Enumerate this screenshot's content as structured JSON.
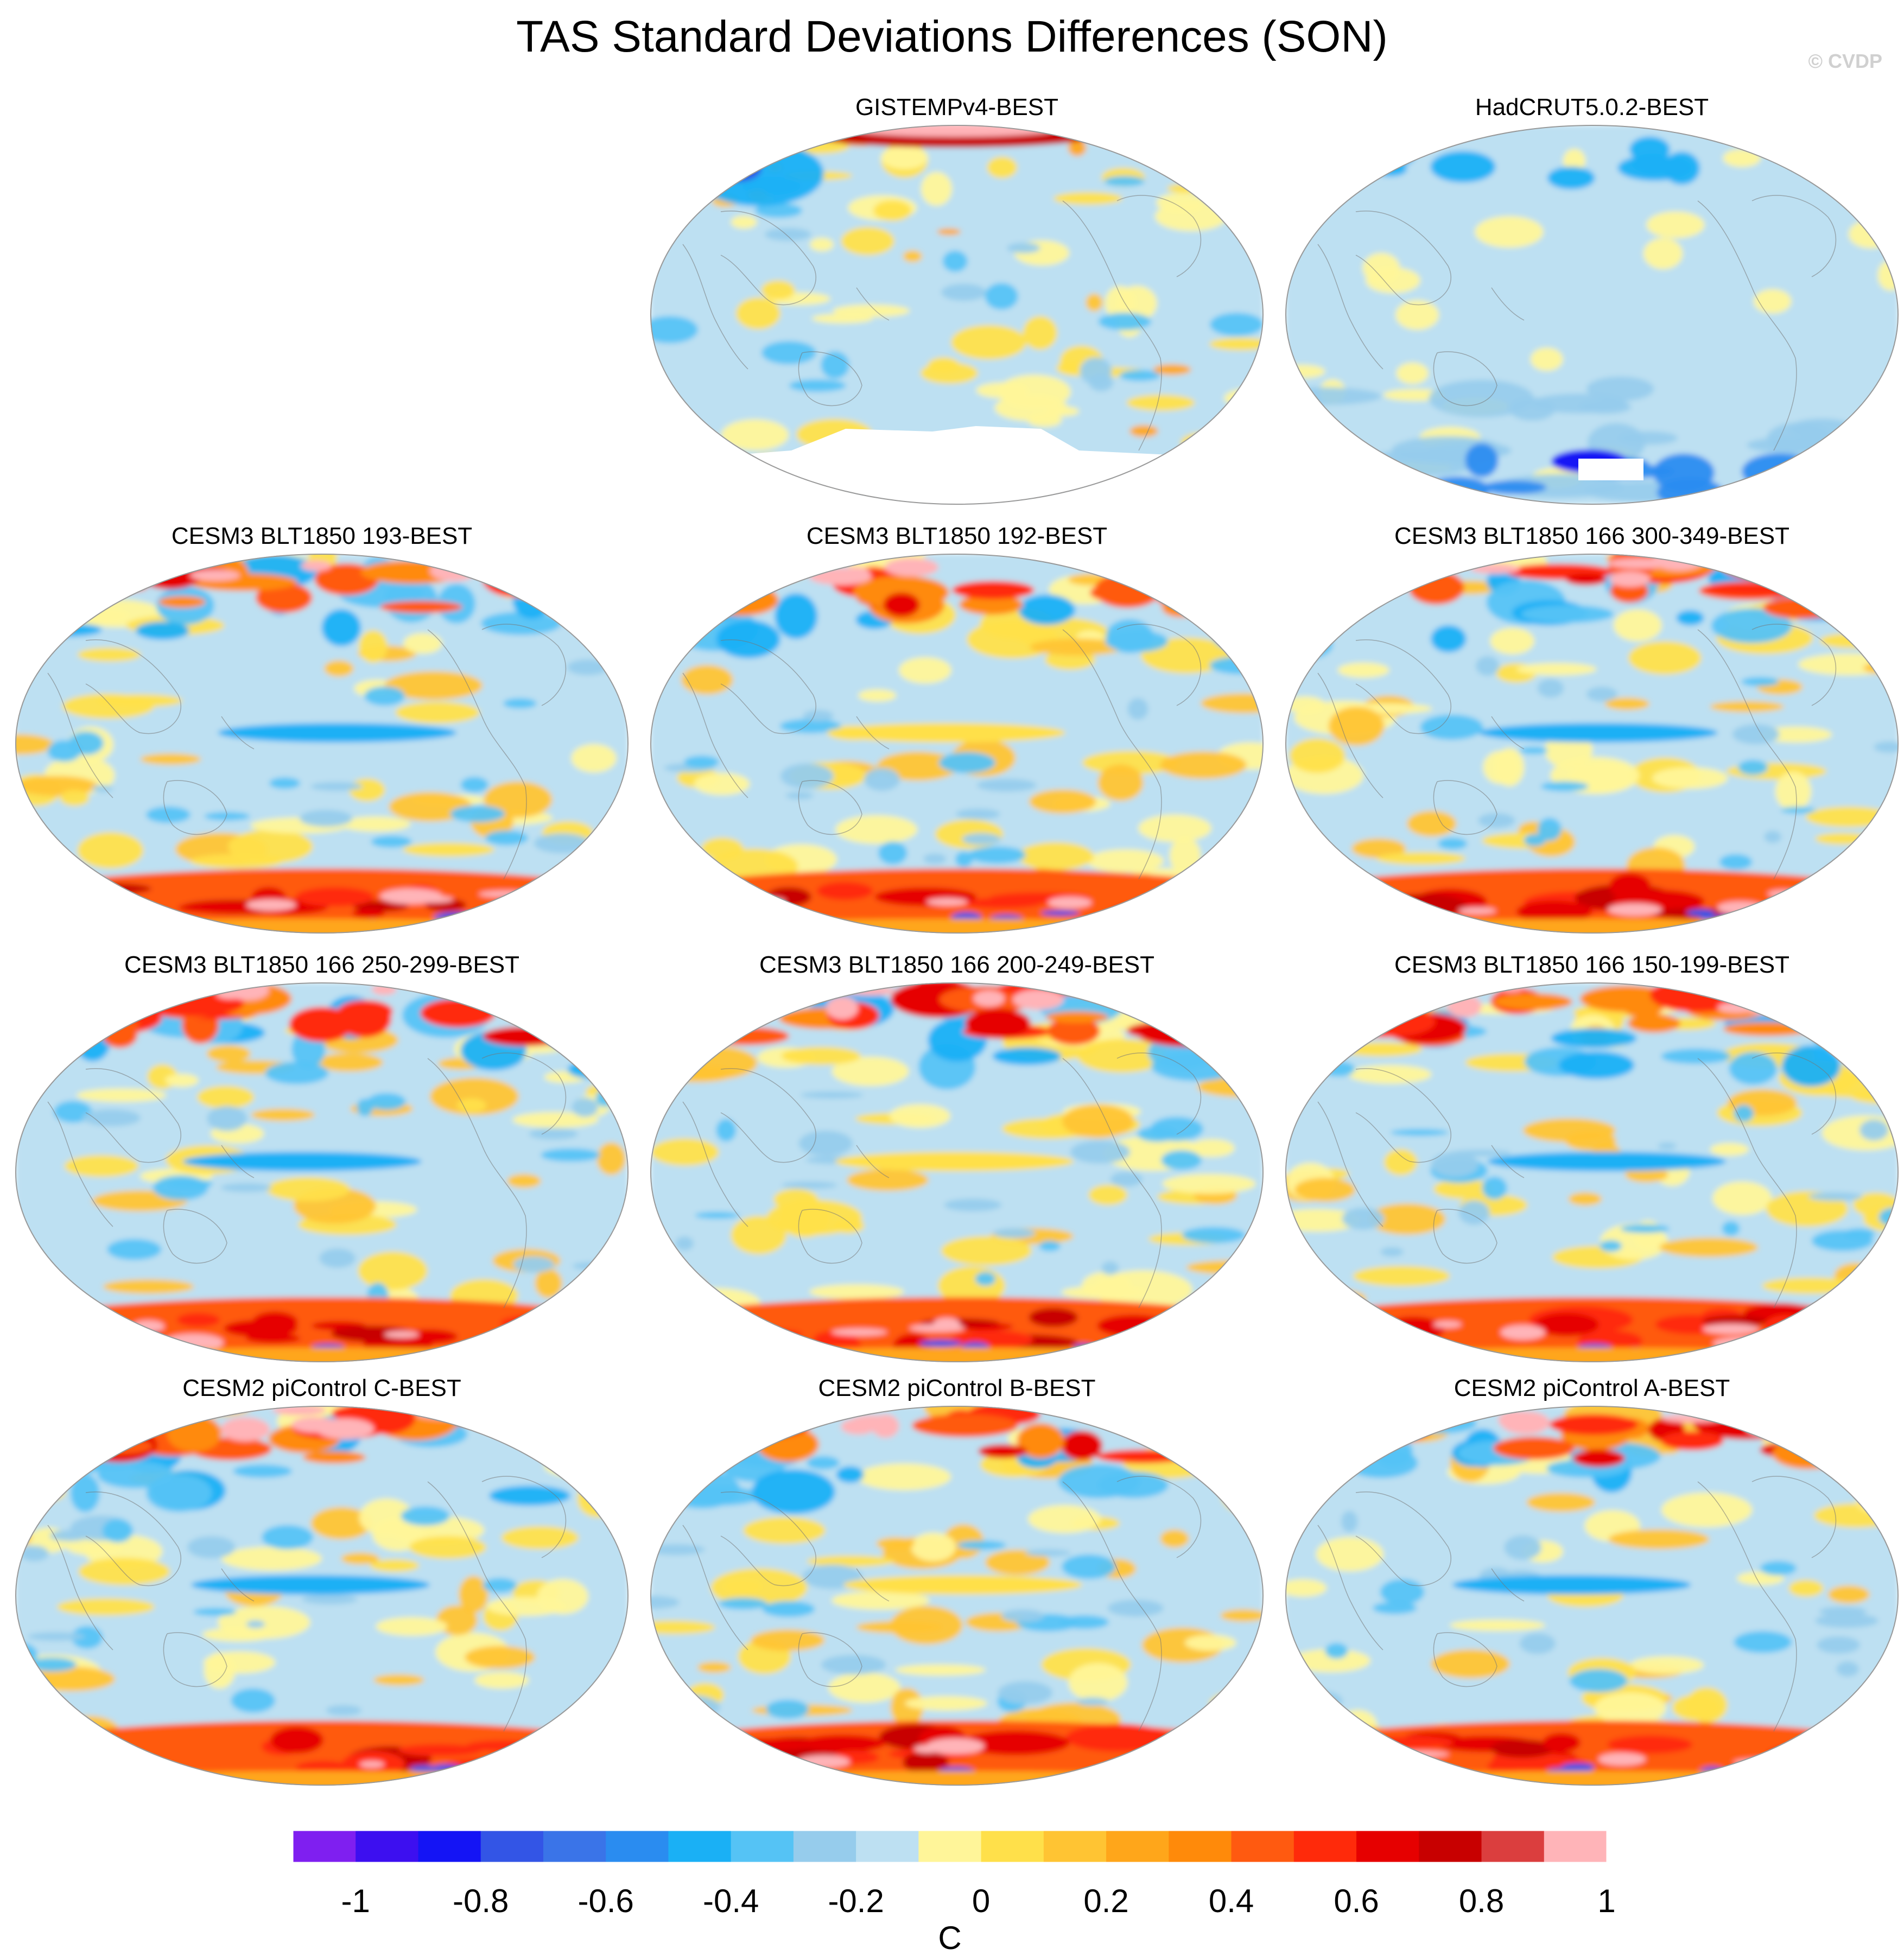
{
  "title": "TAS Standard Deviations Differences (SON)",
  "credit": "© CVDP",
  "colors": {
    "ocean_base": "#bde0f2",
    "land_line": "#777777",
    "missing": "#ffffff"
  },
  "panels": [
    {
      "id": "gistemp",
      "label": "GISTEMPv4-BEST",
      "row": 0,
      "col": 1,
      "style": "obs-mixed"
    },
    {
      "id": "hadcrut",
      "label": "HadCRUT5.0.2-BEST",
      "row": 0,
      "col": 2,
      "style": "obs-cool"
    },
    {
      "id": "c193",
      "label": "CESM3 BLT1850 193-BEST",
      "row": 1,
      "col": 0,
      "style": "model"
    },
    {
      "id": "c192",
      "label": "CESM3 BLT1850 192-BEST",
      "row": 1,
      "col": 1,
      "style": "model"
    },
    {
      "id": "c300",
      "label": "CESM3 BLT1850 166 300-349-BEST",
      "row": 1,
      "col": 2,
      "style": "model"
    },
    {
      "id": "c250",
      "label": "CESM3 BLT1850 166 250-299-BEST",
      "row": 2,
      "col": 0,
      "style": "model"
    },
    {
      "id": "c200",
      "label": "CESM3 BLT1850 166 200-249-BEST",
      "row": 2,
      "col": 1,
      "style": "model"
    },
    {
      "id": "c150",
      "label": "CESM3 BLT1850 166 150-199-BEST",
      "row": 2,
      "col": 2,
      "style": "model"
    },
    {
      "id": "pic",
      "label": "CESM2 piControl C-BEST",
      "row": 3,
      "col": 0,
      "style": "model"
    },
    {
      "id": "pib",
      "label": "CESM2 piControl B-BEST",
      "row": 3,
      "col": 1,
      "style": "model"
    },
    {
      "id": "pia",
      "label": "CESM2 piControl A-BEST",
      "row": 3,
      "col": 2,
      "style": "model"
    }
  ],
  "colorbar": {
    "unit": "C",
    "colors": [
      "#7f1ff0",
      "#3d0ff0",
      "#1414f5",
      "#3355e6",
      "#3a74e8",
      "#2a8cf0",
      "#1ab0f5",
      "#55c3f5",
      "#96ccec",
      "#bde0f2",
      "#fff599",
      "#ffe04a",
      "#ffc433",
      "#ffa61a",
      "#ff8a0a",
      "#ff5a10",
      "#ff2a0a",
      "#e60000",
      "#c80000",
      "#db3e3e",
      "#ffb4b8"
    ],
    "tick_labels": [
      "-1",
      "-0.8",
      "-0.6",
      "-0.4",
      "-0.2",
      "0",
      "0.2",
      "0.4",
      "0.6",
      "0.8",
      "1"
    ]
  }
}
